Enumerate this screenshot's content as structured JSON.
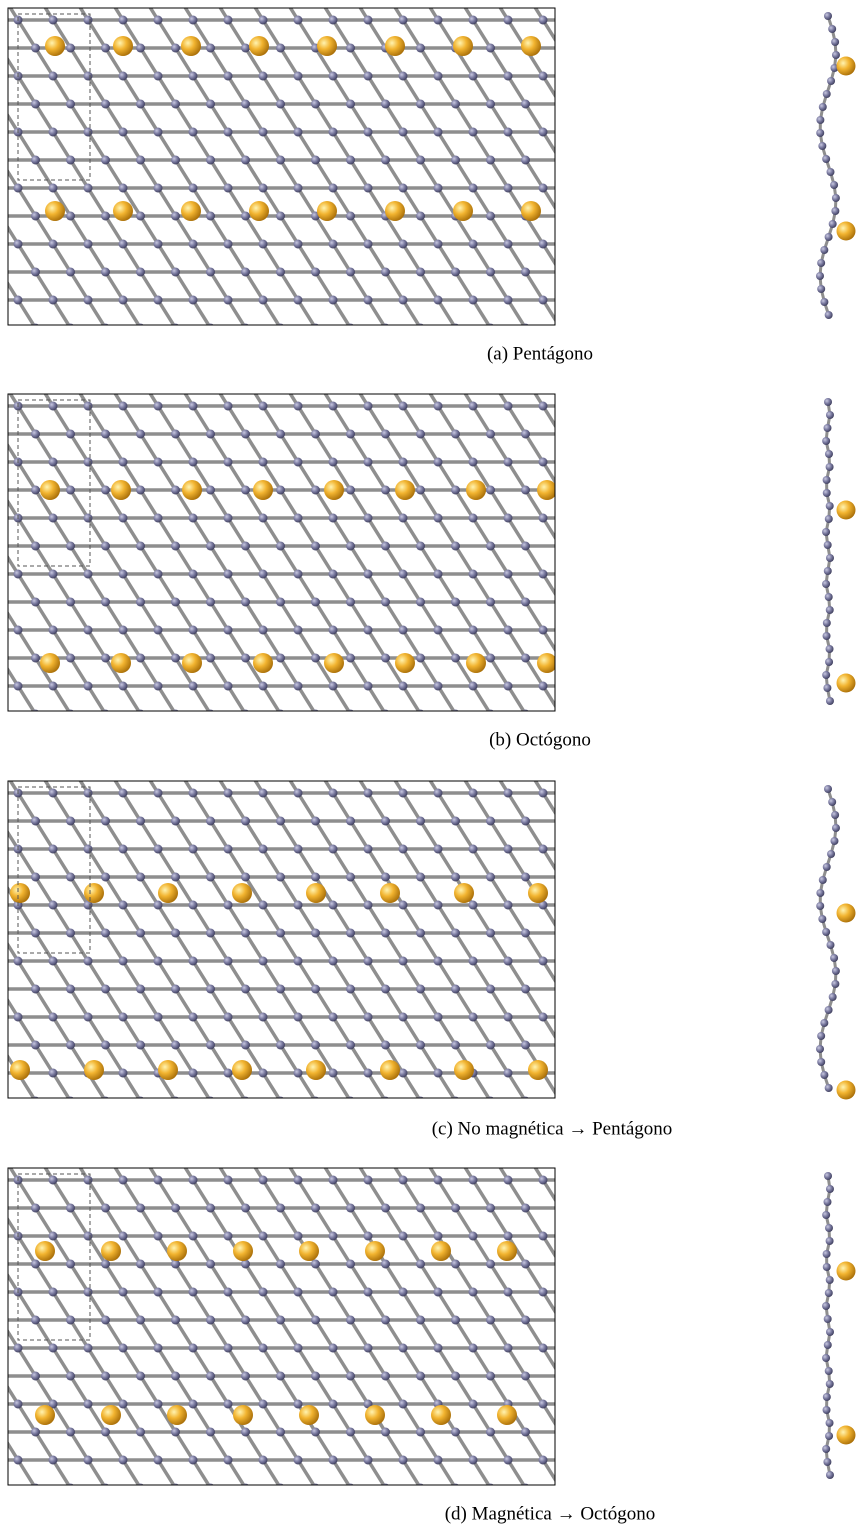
{
  "panels": [
    {
      "caption": "(a) Pentágono"
    },
    {
      "caption": "(b) Octógono"
    },
    {
      "caption": "(c) No magnética → Pentágono"
    },
    {
      "caption": "(d) Magnética → Octógono"
    }
  ]
}
